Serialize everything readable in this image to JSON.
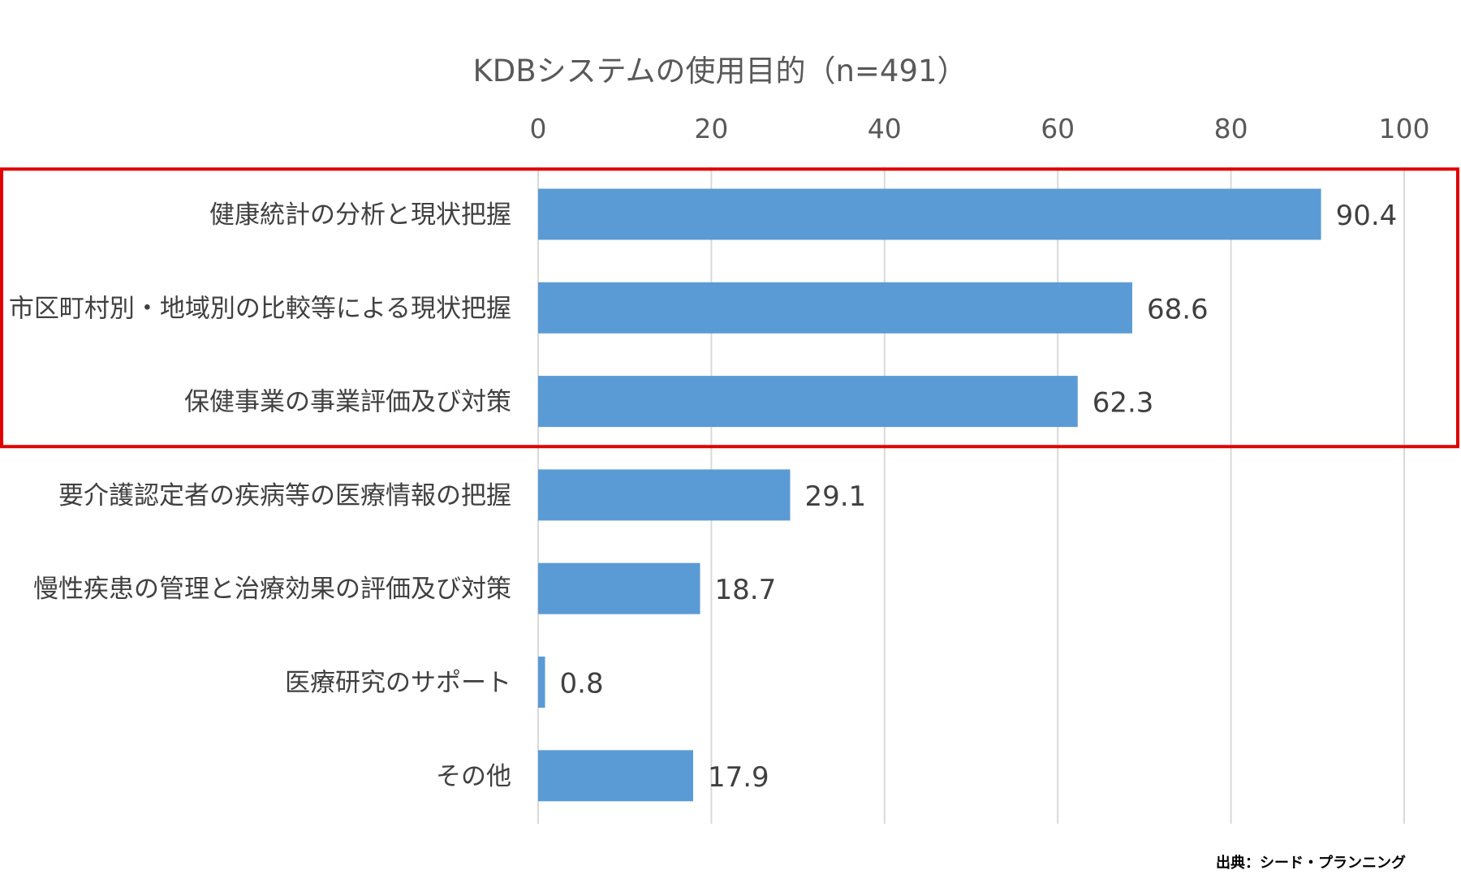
{
  "colors": {
    "bar": "#5b9bd5",
    "gridline": "#d9d9d9",
    "highlight_box": "#e00000"
  },
  "chart_data": {
    "type": "bar",
    "orientation": "horizontal",
    "title": "KDBシステムの使用目的（n=491）",
    "xlim": [
      0,
      100
    ],
    "ticks": [
      0,
      20,
      40,
      60,
      80,
      100
    ],
    "tick_labels": [
      "0",
      "20",
      "40",
      "60",
      "80",
      "100"
    ],
    "axis_position": "top",
    "grid": true,
    "categories": [
      "健康統計の分析と現状把握",
      "市区町村別・地域別の比較等による現状把握",
      "保健事業の事業評価及び対策",
      "要介護認定者の疾病等の医療情報の把握",
      "慢性疾患の管理と治療効果の評価及び対策",
      "医療研究のサポート",
      "その他"
    ],
    "values": [
      90.4,
      68.6,
      62.3,
      29.1,
      18.7,
      0.8,
      17.9
    ],
    "data_labels": [
      "90.4",
      "68.6",
      "62.3",
      "29.1",
      "18.7",
      "0.8",
      "17.9"
    ],
    "highlighted_categories": [
      0,
      1,
      2
    ]
  },
  "source_note": "出典：シード・プランニング"
}
